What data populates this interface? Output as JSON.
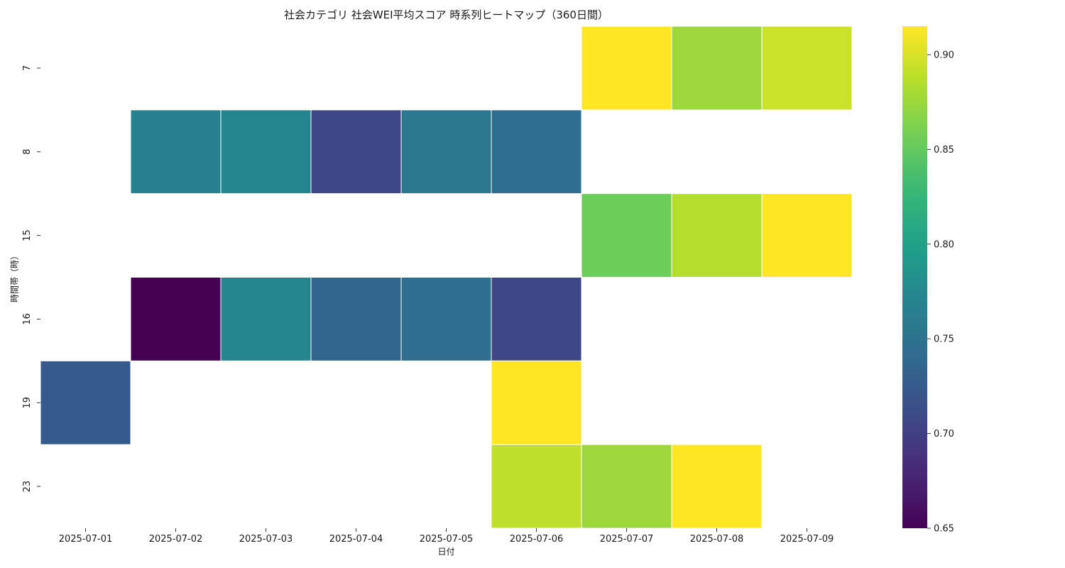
{
  "chart_data": {
    "type": "heatmap",
    "title": "社会カテゴリ 社会WEI平均スコア 時系列ヒートマップ（360日間）",
    "xlabel": "日付",
    "ylabel": "時間帯（時）",
    "x": [
      "2025-07-01",
      "2025-07-02",
      "2025-07-03",
      "2025-07-04",
      "2025-07-05",
      "2025-07-06",
      "2025-07-07",
      "2025-07-08",
      "2025-07-09"
    ],
    "y": [
      "7",
      "8",
      "15",
      "16",
      "19",
      "23"
    ],
    "values": [
      [
        null,
        null,
        null,
        null,
        null,
        null,
        0.915,
        0.875,
        0.895
      ],
      [
        null,
        0.765,
        0.77,
        0.705,
        0.755,
        0.745,
        null,
        null,
        null
      ],
      [
        null,
        null,
        null,
        null,
        null,
        null,
        0.855,
        0.885,
        0.915
      ],
      [
        null,
        0.65,
        0.77,
        0.735,
        0.745,
        0.705,
        null,
        null,
        null
      ],
      [
        0.725,
        null,
        null,
        null,
        null,
        0.915,
        null,
        null,
        null
      ],
      [
        null,
        null,
        null,
        null,
        null,
        0.89,
        0.875,
        0.92,
        null
      ]
    ],
    "colorbar": {
      "colormap": "viridis",
      "range": [
        0.65,
        0.915
      ],
      "ticks": [
        "0.65",
        "0.70",
        "0.75",
        "0.80",
        "0.85",
        "0.90"
      ],
      "position": "right"
    },
    "grid": false,
    "cell_border_color": "#ffffff"
  }
}
